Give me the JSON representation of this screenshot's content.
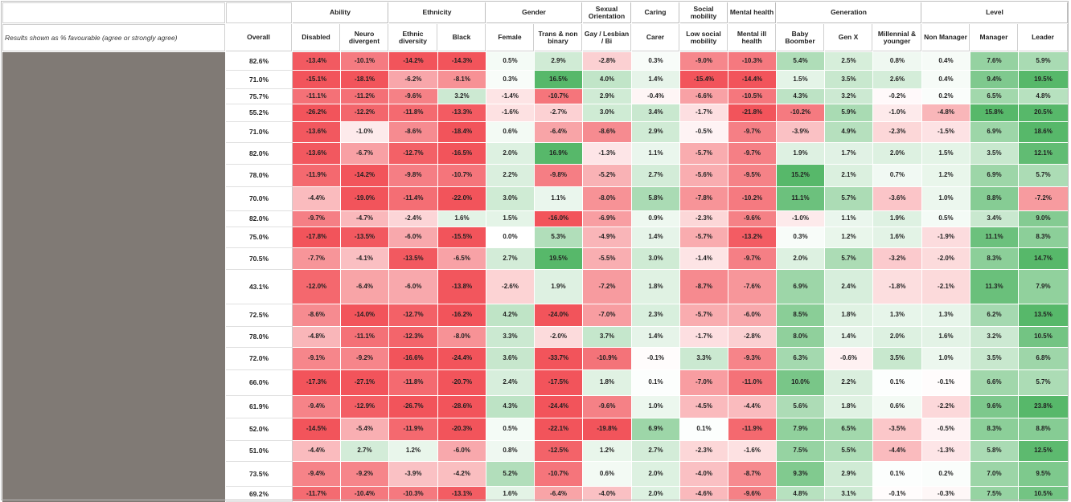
{
  "chart_data": {
    "type": "heatmap",
    "note": "Results shown as % favourable (agree or strongly agree)",
    "groups": [
      {
        "name": "",
        "span": 1
      },
      {
        "name": "Ability",
        "span": 2
      },
      {
        "name": "Ethnicity",
        "span": 2
      },
      {
        "name": "Gender",
        "span": 2
      },
      {
        "name": "Sexual Orientation",
        "span": 1
      },
      {
        "name": "Caring",
        "span": 1
      },
      {
        "name": "Social mobility",
        "span": 1
      },
      {
        "name": "Mental health",
        "span": 1
      },
      {
        "name": "Generation",
        "span": 3
      },
      {
        "name": "Level",
        "span": 3
      }
    ],
    "columns": [
      "Overall",
      "Disabled",
      "Neuro divergent",
      "Ethnic diversity",
      "Black",
      "Female",
      "Trans & non binary",
      "Gay / Lesbian / Bi",
      "Carer",
      "Low social mobility",
      "Mental ill health",
      "Baby Boomber",
      "Gen X",
      "Millennial & younger",
      "Non Manager",
      "Manager",
      "Leader"
    ],
    "rows": [
      [
        "82.6%",
        "-13.4%",
        "-10.1%",
        "-14.2%",
        "-14.3%",
        "0.5%",
        "2.9%",
        "-2.8%",
        "0.3%",
        "-9.0%",
        "-10.3%",
        "5.4%",
        "2.5%",
        "0.8%",
        "0.4%",
        "7.6%",
        "5.9%"
      ],
      [
        "71.0%",
        "-15.1%",
        "-18.1%",
        "-6.2%",
        "-8.1%",
        "0.3%",
        "16.5%",
        "4.0%",
        "1.4%",
        "-15.4%",
        "-14.4%",
        "1.5%",
        "3.5%",
        "2.6%",
        "0.4%",
        "9.4%",
        "19.5%"
      ],
      [
        "75.7%",
        "-11.1%",
        "-11.2%",
        "-9.6%",
        "3.2%",
        "-1.4%",
        "-10.7%",
        "2.9%",
        "-0.4%",
        "-6.6%",
        "-10.5%",
        "4.3%",
        "3.2%",
        "-0.2%",
        "0.2%",
        "6.5%",
        "4.8%"
      ],
      [
        "55.2%",
        "-26.2%",
        "-12.2%",
        "-11.8%",
        "-13.3%",
        "-1.6%",
        "-2.7%",
        "3.0%",
        "3.4%",
        "-1.7%",
        "-21.8%",
        "-10.2%",
        "5.9%",
        "-1.0%",
        "-4.8%",
        "15.8%",
        "20.5%"
      ],
      [
        "71.0%",
        "-13.6%",
        "-1.0%",
        "-8.6%",
        "-18.4%",
        "0.6%",
        "-6.4%",
        "-8.6%",
        "2.9%",
        "-0.5%",
        "-9.7%",
        "-3.9%",
        "4.9%",
        "-2.3%",
        "-1.5%",
        "6.9%",
        "18.6%"
      ],
      [
        "82.0%",
        "-13.6%",
        "-6.7%",
        "-12.7%",
        "-16.5%",
        "2.0%",
        "16.9%",
        "-1.3%",
        "1.1%",
        "-5.7%",
        "-9.7%",
        "1.9%",
        "1.7%",
        "2.0%",
        "1.5%",
        "3.5%",
        "12.1%"
      ],
      [
        "78.0%",
        "-11.9%",
        "-14.2%",
        "-9.8%",
        "-10.7%",
        "2.2%",
        "-9.8%",
        "-5.2%",
        "2.7%",
        "-5.6%",
        "-9.5%",
        "15.2%",
        "2.1%",
        "0.7%",
        "1.2%",
        "6.9%",
        "5.7%"
      ],
      [
        "70.0%",
        "-4.4%",
        "-19.0%",
        "-11.4%",
        "-22.0%",
        "3.0%",
        "1.1%",
        "-8.0%",
        "5.8%",
        "-7.8%",
        "-10.2%",
        "11.1%",
        "5.7%",
        "-3.6%",
        "1.0%",
        "8.8%",
        "-7.2%"
      ],
      [
        "82.0%",
        "-9.7%",
        "-4.7%",
        "-2.4%",
        "1.6%",
        "1.5%",
        "-16.0%",
        "-6.9%",
        "0.9%",
        "-2.3%",
        "-9.6%",
        "-1.0%",
        "1.1%",
        "1.9%",
        "0.5%",
        "3.4%",
        "9.0%"
      ],
      [
        "75.0%",
        "-17.8%",
        "-13.5%",
        "-6.0%",
        "-15.5%",
        "0.0%",
        "5.3%",
        "-4.9%",
        "1.4%",
        "-5.7%",
        "-13.2%",
        "0.3%",
        "1.2%",
        "1.6%",
        "-1.9%",
        "11.1%",
        "8.3%"
      ],
      [
        "70.5%",
        "-7.7%",
        "-4.1%",
        "-13.5%",
        "-6.5%",
        "2.7%",
        "19.5%",
        "-5.5%",
        "3.0%",
        "-1.4%",
        "-9.7%",
        "2.0%",
        "5.7%",
        "-3.2%",
        "-2.0%",
        "8.3%",
        "14.7%"
      ],
      [
        "43.1%",
        "-12.0%",
        "-6.4%",
        "-6.0%",
        "-13.8%",
        "-2.6%",
        "1.9%",
        "-7.2%",
        "1.8%",
        "-8.7%",
        "-7.6%",
        "6.9%",
        "2.4%",
        "-1.8%",
        "-2.1%",
        "11.3%",
        "7.9%"
      ],
      [
        "72.5%",
        "-8.6%",
        "-14.0%",
        "-12.7%",
        "-16.2%",
        "4.2%",
        "-24.0%",
        "-7.0%",
        "2.3%",
        "-5.7%",
        "-6.0%",
        "8.5%",
        "1.8%",
        "1.3%",
        "1.3%",
        "6.2%",
        "13.5%"
      ],
      [
        "78.0%",
        "-4.8%",
        "-11.1%",
        "-12.3%",
        "-8.0%",
        "3.3%",
        "-2.0%",
        "3.7%",
        "1.4%",
        "-1.7%",
        "-2.8%",
        "8.0%",
        "1.4%",
        "2.0%",
        "1.6%",
        "3.2%",
        "10.5%"
      ],
      [
        "72.0%",
        "-9.1%",
        "-9.2%",
        "-16.6%",
        "-24.4%",
        "3.6%",
        "-33.7%",
        "-10.9%",
        "-0.1%",
        "3.3%",
        "-9.3%",
        "6.3%",
        "-0.6%",
        "3.5%",
        "1.0%",
        "3.5%",
        "6.8%"
      ],
      [
        "66.0%",
        "-17.3%",
        "-27.1%",
        "-11.8%",
        "-20.7%",
        "2.4%",
        "-17.5%",
        "1.8%",
        "0.1%",
        "-7.0%",
        "-11.0%",
        "10.0%",
        "2.2%",
        "0.1%",
        "-0.1%",
        "6.6%",
        "5.7%"
      ],
      [
        "61.9%",
        "-9.4%",
        "-12.9%",
        "-26.7%",
        "-28.6%",
        "4.3%",
        "-24.4%",
        "-9.6%",
        "1.0%",
        "-4.5%",
        "-4.4%",
        "5.6%",
        "1.8%",
        "0.6%",
        "-2.2%",
        "9.6%",
        "23.8%"
      ],
      [
        "52.0%",
        "-14.5%",
        "-5.4%",
        "-11.9%",
        "-20.3%",
        "0.5%",
        "-22.1%",
        "-19.8%",
        "6.9%",
        "0.1%",
        "-11.9%",
        "7.9%",
        "6.5%",
        "-3.5%",
        "-0.5%",
        "8.3%",
        "8.8%"
      ],
      [
        "51.0%",
        "-4.4%",
        "2.7%",
        "1.2%",
        "-6.0%",
        "0.8%",
        "-12.5%",
        "1.2%",
        "2.7%",
        "-2.3%",
        "-1.6%",
        "7.5%",
        "5.5%",
        "-4.4%",
        "-1.3%",
        "5.8%",
        "12.5%"
      ],
      [
        "73.5%",
        "-9.4%",
        "-9.2%",
        "-3.9%",
        "-4.2%",
        "5.2%",
        "-10.7%",
        "0.6%",
        "2.0%",
        "-4.0%",
        "-8.7%",
        "9.3%",
        "2.9%",
        "0.1%",
        "0.2%",
        "7.0%",
        "9.5%"
      ],
      [
        "69.2%",
        "-11.7%",
        "-10.4%",
        "-10.3%",
        "-13.1%",
        "1.6%",
        "-6.4%",
        "-4.0%",
        "2.0%",
        "-4.6%",
        "-9.6%",
        "4.8%",
        "3.1%",
        "-0.1%",
        "-0.3%",
        "7.5%",
        "10.5%"
      ]
    ],
    "colors": {
      "negative_strong": "#f2545b",
      "positive_strong": "#57b86a",
      "neutral": "#ffffff",
      "left_panel": "#807a75"
    }
  }
}
